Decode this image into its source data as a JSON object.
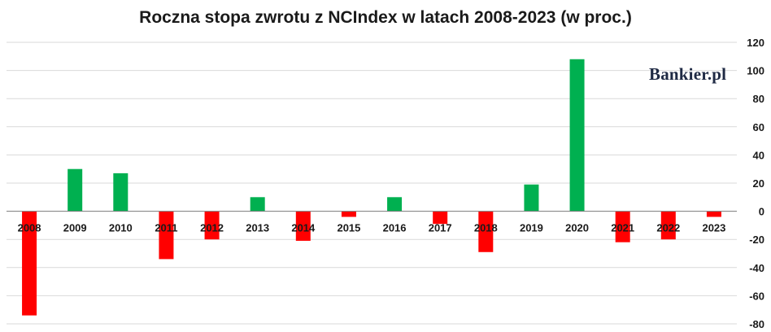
{
  "chart_data": {
    "type": "bar",
    "title": "Roczna stopa zwrotu z NCIndex w latach 2008-2023 (w proc.)",
    "xlabel": "",
    "ylabel": "",
    "categories": [
      "2008",
      "2009",
      "2010",
      "2011",
      "2012",
      "2013",
      "2014",
      "2015",
      "2016",
      "2017",
      "2018",
      "2019",
      "2020",
      "2021",
      "2022",
      "2023"
    ],
    "values": [
      -74,
      30,
      27,
      -34,
      -20,
      10,
      -21,
      -4,
      10,
      -9,
      -29,
      19,
      108,
      -22,
      -20,
      -4
    ],
    "ylim": [
      -80,
      120
    ],
    "yticks": [
      "-80",
      "-60",
      "-40",
      "-20",
      "0",
      "20",
      "40",
      "60",
      "80",
      "100",
      "120"
    ],
    "y_axis_position": "right",
    "grid": true,
    "colors": {
      "positive": "#00b050",
      "negative": "#ff0000",
      "grid": "#d9d9d9",
      "axis": "#7f7f7f"
    }
  },
  "watermark": "Bankier.pl"
}
